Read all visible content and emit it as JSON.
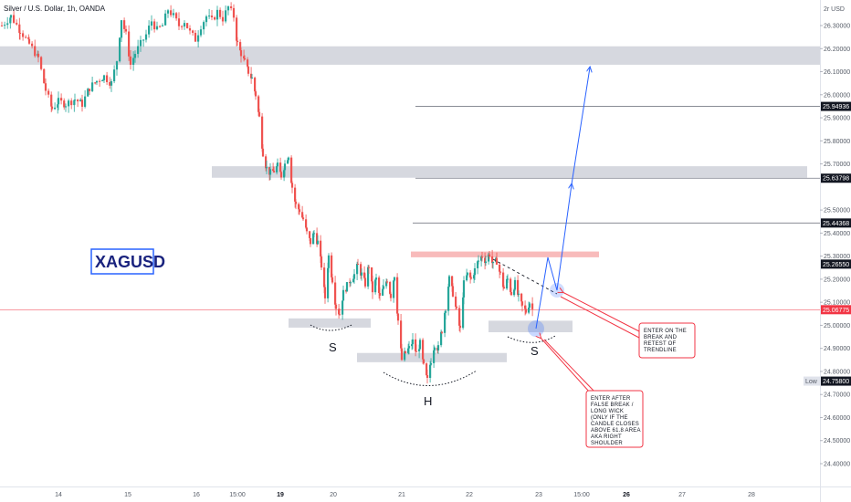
{
  "chart_data": {
    "type": "candlestick",
    "title": "Silver / U.S. Dollar, 1h, OANDA",
    "symbol": "XAGUSD",
    "y_axis": {
      "currency_label": "USD",
      "range": [
        24.35,
        26.4
      ],
      "tick_labels": [
        "26.30000",
        "26.20000",
        "26.10000",
        "26.00000",
        "25.90000",
        "25.80000",
        "25.70000",
        "25.50000",
        "25.40000",
        "25.30000",
        "25.20000",
        "25.10000",
        "25.00000",
        "24.90000",
        "24.80000",
        "24.70000",
        "24.60000",
        "24.50000",
        "24.40000"
      ]
    },
    "x_axis": {
      "tick_labels": [
        "14",
        "15",
        "16",
        "15:00",
        "19",
        "20",
        "21",
        "22",
        "23",
        "15:00",
        "26",
        "27",
        "28"
      ],
      "bold_labels": [
        "19",
        "26"
      ]
    },
    "price_tags": [
      {
        "value": "25.94936",
        "color": "#131722"
      },
      {
        "value": "25.63798",
        "color": "#131722"
      },
      {
        "value": "25.44368",
        "color": "#131722"
      },
      {
        "value": "25.26550",
        "color": "#131722"
      },
      {
        "value": "25.06775",
        "color": "#f23645"
      },
      {
        "value": "24.75800",
        "color": "#131722",
        "label": "Low"
      }
    ],
    "horizontal_lines": [
      25.94936,
      25.63798,
      25.44368
    ],
    "current_price": 25.06775,
    "zones": [
      {
        "price_top": 26.21,
        "price_bottom": 26.13,
        "color": "#d1d4dc"
      },
      {
        "price_top": 25.69,
        "price_bottom": 25.64,
        "color": "#d1d4dc"
      },
      {
        "price_top": 25.32,
        "price_bottom": 25.295,
        "color": "#f7b4b4"
      },
      {
        "price_top": 25.03,
        "price_bottom": 24.99,
        "color": "#d1d4dc"
      },
      {
        "price_top": 25.02,
        "price_bottom": 24.97,
        "color": "#d1d4dc"
      },
      {
        "price_top": 24.88,
        "price_bottom": 24.84,
        "color": "#d1d4dc"
      }
    ],
    "pattern_labels": [
      "S",
      "H",
      "S"
    ],
    "annotations": [
      "ENTER ON THE BREAK AND RETEST OF TRENDLINE",
      "ENTER AFTER FALSE BREAK / LONG WICK (ONLY IF THE CANDLE CLOSES ABOVE 61.8 AREA AKA RIGHT SHOULDER"
    ],
    "price_path": [
      [
        0,
        26.3
      ],
      [
        10,
        26.34
      ],
      [
        20,
        26.28
      ],
      [
        30,
        26.22
      ],
      [
        40,
        26.16
      ],
      [
        48,
        26.02
      ],
      [
        55,
        25.94
      ],
      [
        62,
        25.97
      ],
      [
        70,
        25.96
      ],
      [
        80,
        25.98
      ],
      [
        88,
        25.96
      ],
      [
        96,
        26.03
      ],
      [
        104,
        26.06
      ],
      [
        112,
        26.08
      ],
      [
        120,
        26.05
      ],
      [
        126,
        26.15
      ],
      [
        131,
        26.33
      ],
      [
        136,
        26.26
      ],
      [
        141,
        26.13
      ],
      [
        146,
        26.18
      ],
      [
        152,
        26.22
      ],
      [
        158,
        26.26
      ],
      [
        164,
        26.32
      ],
      [
        170,
        26.28
      ],
      [
        176,
        26.3
      ],
      [
        182,
        26.37
      ],
      [
        188,
        26.34
      ],
      [
        194,
        26.3
      ],
      [
        200,
        26.32
      ],
      [
        206,
        26.27
      ],
      [
        212,
        26.24
      ],
      [
        218,
        26.3
      ],
      [
        224,
        26.34
      ],
      [
        230,
        26.32
      ],
      [
        236,
        26.36
      ],
      [
        242,
        26.33
      ],
      [
        248,
        26.38
      ],
      [
        254,
        26.34
      ],
      [
        258,
        26.22
      ],
      [
        262,
        26.18
      ],
      [
        266,
        26.14
      ],
      [
        270,
        26.1
      ],
      [
        274,
        26.07
      ],
      [
        278,
        26.0
      ],
      [
        282,
        25.9
      ],
      [
        286,
        25.75
      ],
      [
        290,
        25.68
      ],
      [
        294,
        25.66
      ],
      [
        298,
        25.67
      ],
      [
        302,
        25.69
      ],
      [
        306,
        25.65
      ],
      [
        310,
        25.7
      ],
      [
        314,
        25.74
      ],
      [
        318,
        25.6
      ],
      [
        322,
        25.52
      ],
      [
        326,
        25.5
      ],
      [
        330,
        25.46
      ],
      [
        334,
        25.4
      ],
      [
        338,
        25.36
      ],
      [
        342,
        25.4
      ],
      [
        346,
        25.36
      ],
      [
        350,
        25.26
      ],
      [
        354,
        25.12
      ],
      [
        358,
        25.3
      ],
      [
        362,
        25.2
      ],
      [
        366,
        25.08
      ],
      [
        370,
        25.05
      ],
      [
        374,
        25.14
      ],
      [
        378,
        25.17
      ],
      [
        382,
        25.2
      ],
      [
        386,
        25.22
      ],
      [
        390,
        25.26
      ],
      [
        394,
        25.22
      ],
      [
        398,
        25.18
      ],
      [
        402,
        25.26
      ],
      [
        406,
        25.15
      ],
      [
        410,
        25.2
      ],
      [
        414,
        25.12
      ],
      [
        418,
        25.16
      ],
      [
        422,
        25.2
      ],
      [
        426,
        25.13
      ],
      [
        430,
        25.22
      ],
      [
        434,
        25.02
      ],
      [
        438,
        24.85
      ],
      [
        442,
        24.88
      ],
      [
        446,
        24.9
      ],
      [
        450,
        24.93
      ],
      [
        454,
        24.88
      ],
      [
        458,
        24.92
      ],
      [
        462,
        24.82
      ],
      [
        466,
        24.76
      ],
      [
        470,
        24.85
      ],
      [
        474,
        24.92
      ],
      [
        478,
        24.9
      ],
      [
        482,
        24.98
      ],
      [
        486,
        25.08
      ],
      [
        490,
        25.2
      ],
      [
        494,
        25.14
      ],
      [
        498,
        25.06
      ],
      [
        502,
        24.98
      ],
      [
        506,
        25.18
      ],
      [
        510,
        25.22
      ],
      [
        514,
        25.2
      ],
      [
        518,
        25.24
      ],
      [
        522,
        25.28
      ],
      [
        526,
        25.3
      ],
      [
        530,
        25.28
      ],
      [
        534,
        25.31
      ],
      [
        538,
        25.26
      ],
      [
        542,
        25.28
      ],
      [
        546,
        25.22
      ],
      [
        550,
        25.16
      ],
      [
        554,
        25.2
      ],
      [
        558,
        25.14
      ],
      [
        562,
        25.18
      ],
      [
        566,
        25.12
      ],
      [
        570,
        25.08
      ],
      [
        574,
        25.06
      ],
      [
        578,
        25.1
      ],
      [
        582,
        25.06
      ]
    ]
  }
}
